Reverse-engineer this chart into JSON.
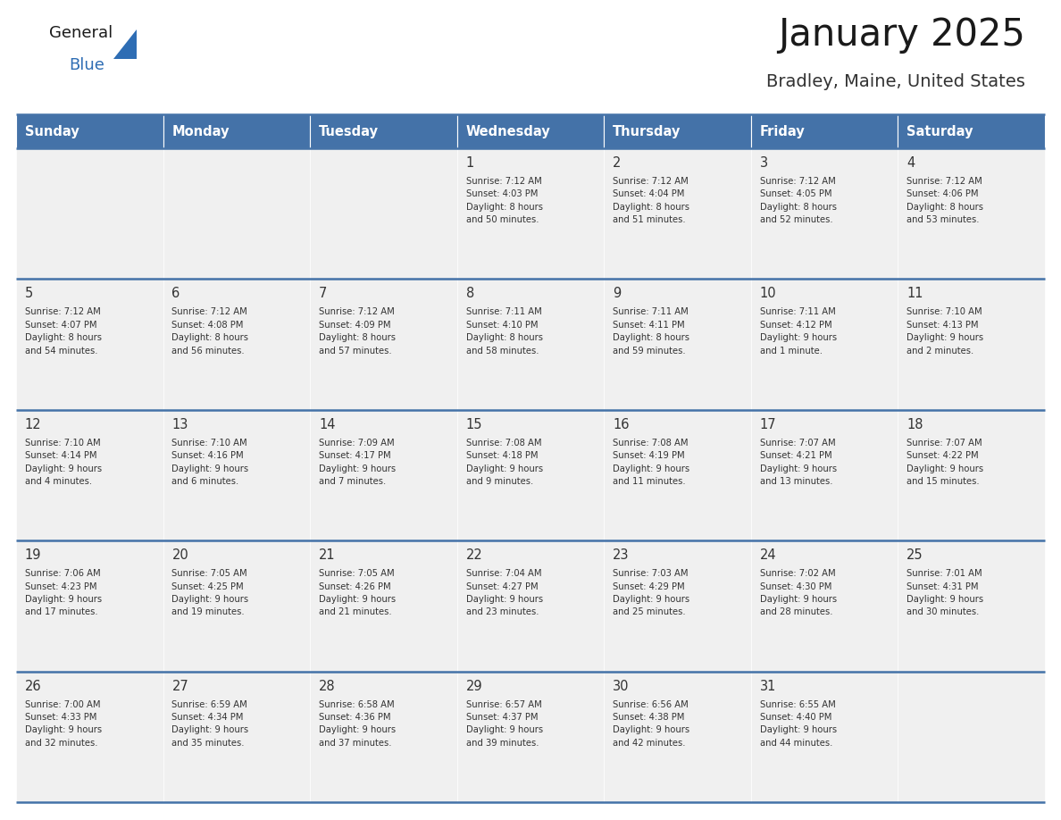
{
  "title": "January 2025",
  "subtitle": "Bradley, Maine, United States",
  "days_of_week": [
    "Sunday",
    "Monday",
    "Tuesday",
    "Wednesday",
    "Thursday",
    "Friday",
    "Saturday"
  ],
  "header_bg": "#4472a8",
  "header_text": "#ffffff",
  "cell_bg_light": "#f0f0f0",
  "cell_bg_white": "#ffffff",
  "cell_text": "#333333",
  "border_color": "#4472a8",
  "title_color": "#1a1a1a",
  "subtitle_color": "#333333",
  "logo_general_color": "#1a1a1a",
  "logo_blue_color": "#2e6db4",
  "calendar_data": [
    [
      {
        "day": null,
        "info": null
      },
      {
        "day": null,
        "info": null
      },
      {
        "day": null,
        "info": null
      },
      {
        "day": 1,
        "info": "Sunrise: 7:12 AM\nSunset: 4:03 PM\nDaylight: 8 hours\nand 50 minutes."
      },
      {
        "day": 2,
        "info": "Sunrise: 7:12 AM\nSunset: 4:04 PM\nDaylight: 8 hours\nand 51 minutes."
      },
      {
        "day": 3,
        "info": "Sunrise: 7:12 AM\nSunset: 4:05 PM\nDaylight: 8 hours\nand 52 minutes."
      },
      {
        "day": 4,
        "info": "Sunrise: 7:12 AM\nSunset: 4:06 PM\nDaylight: 8 hours\nand 53 minutes."
      }
    ],
    [
      {
        "day": 5,
        "info": "Sunrise: 7:12 AM\nSunset: 4:07 PM\nDaylight: 8 hours\nand 54 minutes."
      },
      {
        "day": 6,
        "info": "Sunrise: 7:12 AM\nSunset: 4:08 PM\nDaylight: 8 hours\nand 56 minutes."
      },
      {
        "day": 7,
        "info": "Sunrise: 7:12 AM\nSunset: 4:09 PM\nDaylight: 8 hours\nand 57 minutes."
      },
      {
        "day": 8,
        "info": "Sunrise: 7:11 AM\nSunset: 4:10 PM\nDaylight: 8 hours\nand 58 minutes."
      },
      {
        "day": 9,
        "info": "Sunrise: 7:11 AM\nSunset: 4:11 PM\nDaylight: 8 hours\nand 59 minutes."
      },
      {
        "day": 10,
        "info": "Sunrise: 7:11 AM\nSunset: 4:12 PM\nDaylight: 9 hours\nand 1 minute."
      },
      {
        "day": 11,
        "info": "Sunrise: 7:10 AM\nSunset: 4:13 PM\nDaylight: 9 hours\nand 2 minutes."
      }
    ],
    [
      {
        "day": 12,
        "info": "Sunrise: 7:10 AM\nSunset: 4:14 PM\nDaylight: 9 hours\nand 4 minutes."
      },
      {
        "day": 13,
        "info": "Sunrise: 7:10 AM\nSunset: 4:16 PM\nDaylight: 9 hours\nand 6 minutes."
      },
      {
        "day": 14,
        "info": "Sunrise: 7:09 AM\nSunset: 4:17 PM\nDaylight: 9 hours\nand 7 minutes."
      },
      {
        "day": 15,
        "info": "Sunrise: 7:08 AM\nSunset: 4:18 PM\nDaylight: 9 hours\nand 9 minutes."
      },
      {
        "day": 16,
        "info": "Sunrise: 7:08 AM\nSunset: 4:19 PM\nDaylight: 9 hours\nand 11 minutes."
      },
      {
        "day": 17,
        "info": "Sunrise: 7:07 AM\nSunset: 4:21 PM\nDaylight: 9 hours\nand 13 minutes."
      },
      {
        "day": 18,
        "info": "Sunrise: 7:07 AM\nSunset: 4:22 PM\nDaylight: 9 hours\nand 15 minutes."
      }
    ],
    [
      {
        "day": 19,
        "info": "Sunrise: 7:06 AM\nSunset: 4:23 PM\nDaylight: 9 hours\nand 17 minutes."
      },
      {
        "day": 20,
        "info": "Sunrise: 7:05 AM\nSunset: 4:25 PM\nDaylight: 9 hours\nand 19 minutes."
      },
      {
        "day": 21,
        "info": "Sunrise: 7:05 AM\nSunset: 4:26 PM\nDaylight: 9 hours\nand 21 minutes."
      },
      {
        "day": 22,
        "info": "Sunrise: 7:04 AM\nSunset: 4:27 PM\nDaylight: 9 hours\nand 23 minutes."
      },
      {
        "day": 23,
        "info": "Sunrise: 7:03 AM\nSunset: 4:29 PM\nDaylight: 9 hours\nand 25 minutes."
      },
      {
        "day": 24,
        "info": "Sunrise: 7:02 AM\nSunset: 4:30 PM\nDaylight: 9 hours\nand 28 minutes."
      },
      {
        "day": 25,
        "info": "Sunrise: 7:01 AM\nSunset: 4:31 PM\nDaylight: 9 hours\nand 30 minutes."
      }
    ],
    [
      {
        "day": 26,
        "info": "Sunrise: 7:00 AM\nSunset: 4:33 PM\nDaylight: 9 hours\nand 32 minutes."
      },
      {
        "day": 27,
        "info": "Sunrise: 6:59 AM\nSunset: 4:34 PM\nDaylight: 9 hours\nand 35 minutes."
      },
      {
        "day": 28,
        "info": "Sunrise: 6:58 AM\nSunset: 4:36 PM\nDaylight: 9 hours\nand 37 minutes."
      },
      {
        "day": 29,
        "info": "Sunrise: 6:57 AM\nSunset: 4:37 PM\nDaylight: 9 hours\nand 39 minutes."
      },
      {
        "day": 30,
        "info": "Sunrise: 6:56 AM\nSunset: 4:38 PM\nDaylight: 9 hours\nand 42 minutes."
      },
      {
        "day": 31,
        "info": "Sunrise: 6:55 AM\nSunset: 4:40 PM\nDaylight: 9 hours\nand 44 minutes."
      },
      {
        "day": null,
        "info": null
      }
    ]
  ]
}
